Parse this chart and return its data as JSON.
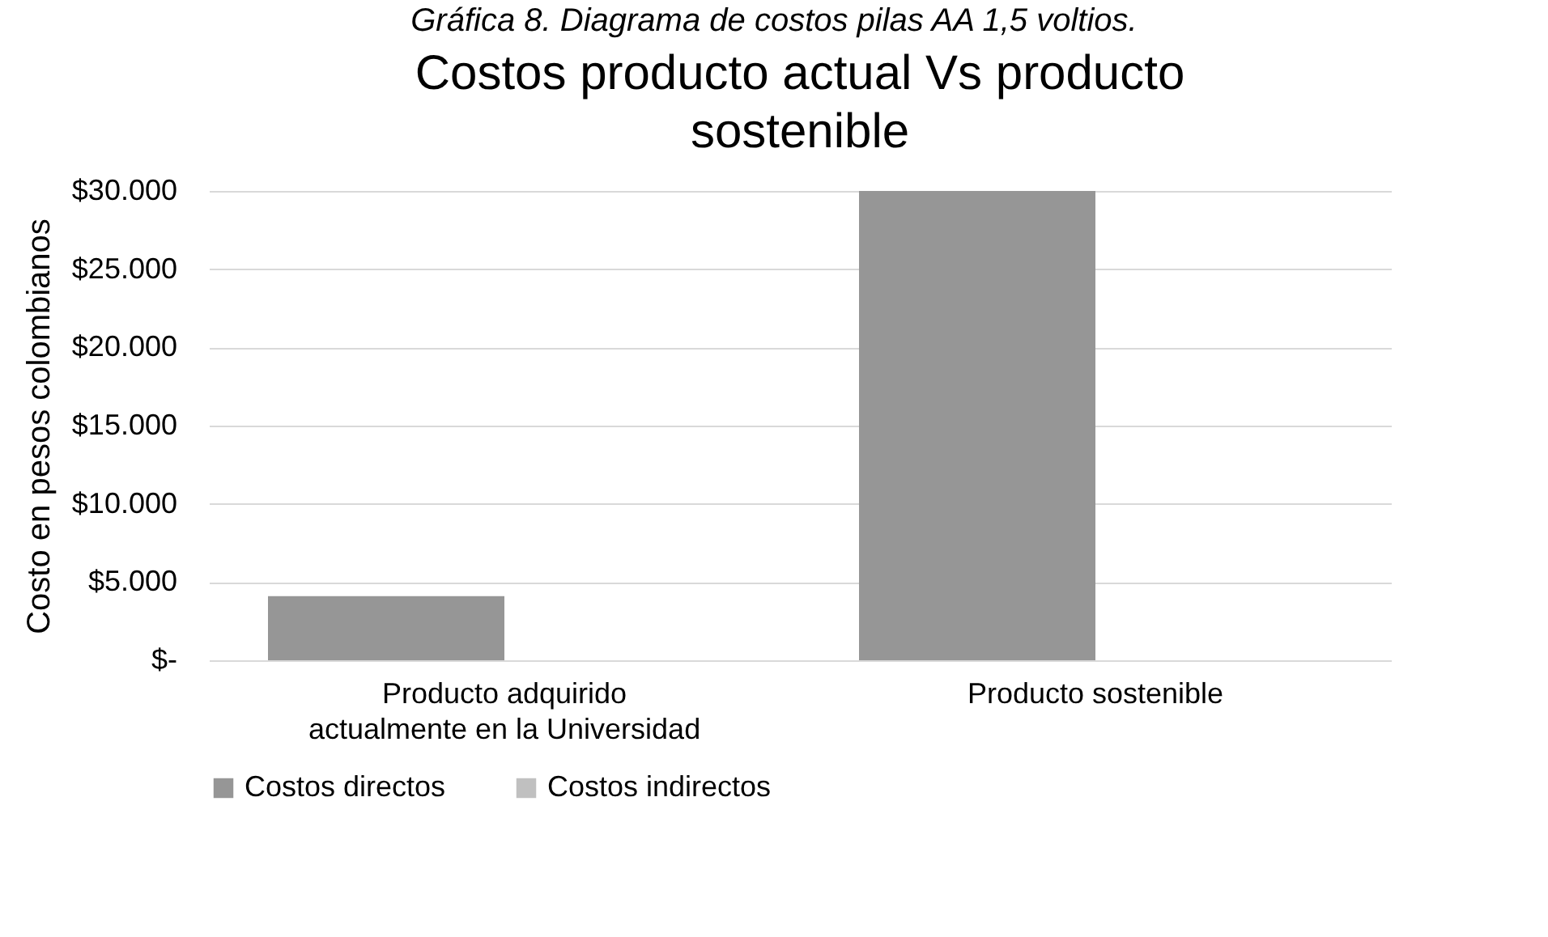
{
  "chart_data": {
    "type": "bar",
    "title": "Costos producto actual Vs producto sostenible",
    "ylabel": "Costo en pesos colombianos",
    "annotations": [
      "Gráfica 8. Diagrama de costos pilas AA 1,5 voltios."
    ],
    "categories": [
      "Producto adquirido actualmente en la Universidad",
      "Producto sostenible"
    ],
    "series": [
      {
        "name": "Costos directos",
        "color": "#969696",
        "values": [
          4100,
          30000
        ]
      },
      {
        "name": "Costos indirectos",
        "color": "#c0c0c0",
        "values": [
          0,
          0
        ]
      }
    ],
    "ylim": [
      0,
      30000
    ],
    "yticks": [
      {
        "value": 0,
        "label": "$-"
      },
      {
        "value": 5000,
        "label": "$5.000"
      },
      {
        "value": 10000,
        "label": "$10.000"
      },
      {
        "value": 15000,
        "label": "$15.000"
      },
      {
        "value": 20000,
        "label": "$20.000"
      },
      {
        "value": 25000,
        "label": "$25.000"
      },
      {
        "value": 30000,
        "label": "$30.000"
      }
    ],
    "grid": "y",
    "legend": "bottom"
  }
}
